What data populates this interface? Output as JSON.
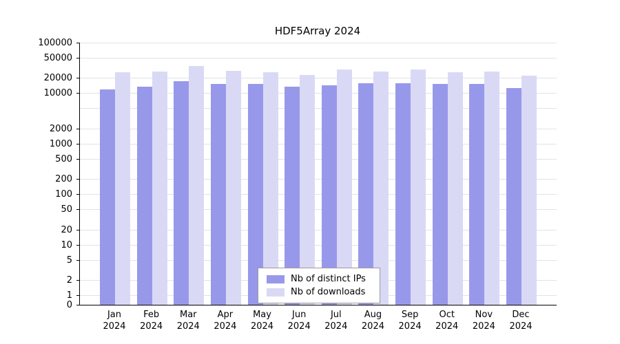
{
  "chart_data": {
    "type": "bar",
    "title": "HDF5Array 2024",
    "categories": [
      "Jan",
      "Feb",
      "Mar",
      "Apr",
      "May",
      "Jun",
      "Jul",
      "Aug",
      "Sep",
      "Oct",
      "Nov",
      "Dec"
    ],
    "x_year": "2024",
    "series": [
      {
        "name": "Nb of distinct IPs",
        "color": "#9898ea",
        "values": [
          12000,
          13500,
          17500,
          15000,
          15000,
          13500,
          14500,
          15500,
          15500,
          15000,
          15000,
          12500
        ]
      },
      {
        "name": "Nb of downloads",
        "color": "#d9d9f6",
        "values": [
          26000,
          27000,
          34000,
          28000,
          26000,
          23000,
          29000,
          27000,
          29000,
          26000,
          27000,
          22000
        ]
      }
    ],
    "y_axis": {
      "scale": "log",
      "min": 0,
      "max": 100000,
      "ticks": [
        {
          "value": 100000,
          "label": "100000"
        },
        {
          "value": 50000,
          "label": "50000"
        },
        {
          "value": 20000,
          "label": "20000"
        },
        {
          "value": 10000,
          "label": "10000"
        },
        {
          "value": 5000,
          "label": ""
        },
        {
          "value": 2000,
          "label": "2000"
        },
        {
          "value": 1000,
          "label": "1000"
        },
        {
          "value": 500,
          "label": "500"
        },
        {
          "value": 200,
          "label": "200"
        },
        {
          "value": 100,
          "label": "100"
        },
        {
          "value": 50,
          "label": "50"
        },
        {
          "value": 20,
          "label": "20"
        },
        {
          "value": 10,
          "label": "10"
        },
        {
          "value": 5,
          "label": "5"
        },
        {
          "value": 2,
          "label": "2"
        },
        {
          "value": 1,
          "label": "1"
        },
        {
          "value": 0,
          "label": "0"
        }
      ]
    },
    "grid": true,
    "legend_position": "bottom-center"
  }
}
